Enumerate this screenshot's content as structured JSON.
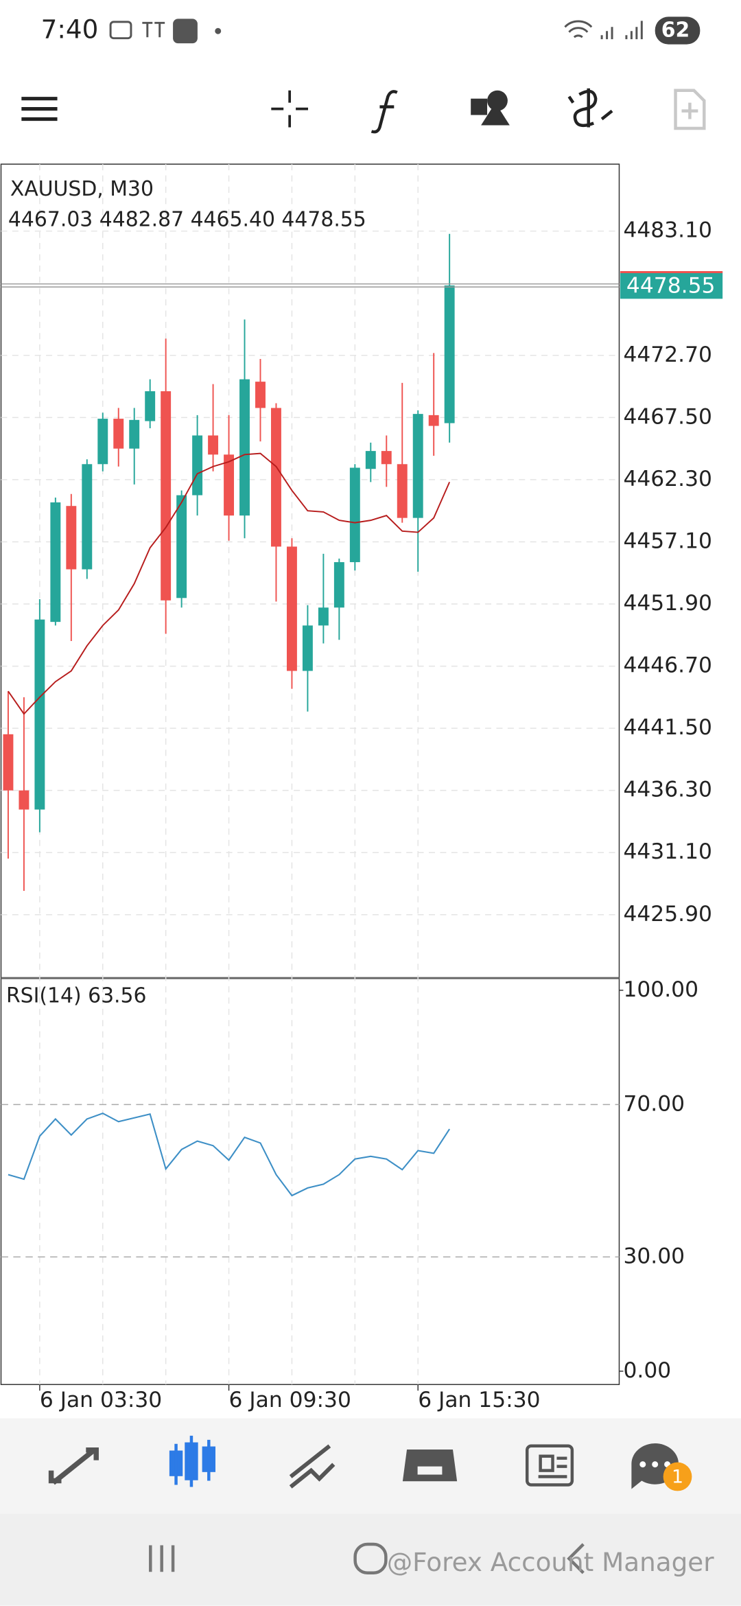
{
  "status_bar": {
    "time": "7:40",
    "battery": "62"
  },
  "chart_data": [
    {
      "type": "candlestick",
      "title": "XAUUSD, M30",
      "subtitle": "4467.03 4482.87 4465.40 4478.55",
      "categories": [
        null,
        null,
        "6 Jan 03:30",
        null,
        null,
        null,
        null,
        null,
        null,
        null,
        null,
        null,
        null,
        null,
        "6 Jan 09:30",
        null,
        null,
        null,
        null,
        null,
        null,
        null,
        null,
        null,
        null,
        null,
        "6 Jan 15:30",
        null,
        null
      ],
      "open": [
        4441.0,
        4436.3,
        4434.7,
        4450.4,
        4460.1,
        4454.8,
        4463.6,
        4467.4,
        4464.9,
        4467.2,
        4469.7,
        4452.4,
        4461.0,
        4466.0,
        4464.4,
        4459.3,
        4470.5,
        4468.3,
        4456.7,
        4446.3,
        4450.1,
        4451.6,
        4455.4,
        4463.2,
        4464.7,
        4463.6,
        4459.1,
        4467.7,
        4467.03
      ],
      "high": [
        4444.6,
        4444.1,
        4452.3,
        4460.8,
        4461.1,
        4464.0,
        4467.9,
        4468.3,
        4468.3,
        4470.7,
        4474.1,
        4461.4,
        4467.7,
        4470.3,
        4467.7,
        4475.7,
        4472.4,
        4468.7,
        4457.4,
        4451.8,
        4456.1,
        4455.7,
        4463.6,
        4465.4,
        4466.0,
        4470.4,
        4468.1,
        4472.9,
        4482.87
      ],
      "low": [
        4430.6,
        4427.9,
        4432.8,
        4450.1,
        4448.8,
        4454.0,
        4463.0,
        4463.4,
        4461.9,
        4466.6,
        4449.4,
        4451.6,
        4459.3,
        4463.0,
        4457.2,
        4457.4,
        4465.5,
        4452.1,
        4444.8,
        4442.9,
        4448.6,
        4448.9,
        4454.7,
        4462.1,
        4461.7,
        4458.7,
        4454.6,
        4464.3,
        4465.4
      ],
      "close": [
        4436.3,
        4434.7,
        4450.6,
        4460.4,
        4454.8,
        4463.6,
        4467.4,
        4464.9,
        4467.3,
        4469.7,
        4452.2,
        4461.0,
        4466.0,
        4464.4,
        4459.3,
        4470.7,
        4468.3,
        4456.7,
        4446.3,
        4450.1,
        4451.6,
        4455.4,
        4463.3,
        4464.7,
        4463.6,
        4459.1,
        4467.8,
        4466.8,
        4478.55
      ],
      "up_color": "#26a69a",
      "down_color": "#ef5350",
      "ma": {
        "color": "#b71c1c",
        "values": [
          4444.6,
          4442.7,
          4444.1,
          4445.4,
          4446.3,
          4448.4,
          4450.1,
          4451.4,
          4453.6,
          4456.6,
          4458.3,
          4460.4,
          4462.8,
          4463.4,
          4463.8,
          4464.4,
          4464.5,
          4463.4,
          4461.4,
          4459.7,
          4459.6,
          4458.9,
          4458.7,
          4458.9,
          4459.3,
          4458.0,
          4457.9,
          4459.1,
          4462.1
        ]
      },
      "ylim": [
        4420.6,
        4488.7
      ],
      "yticks": [
        {
          "value": 4483.1,
          "label": "4483.10"
        },
        {
          "value": 4472.7,
          "label": "4472.70"
        },
        {
          "value": 4467.5,
          "label": "4467.50"
        },
        {
          "value": 4462.3,
          "label": "4462.30"
        },
        {
          "value": 4457.1,
          "label": "4457.10"
        },
        {
          "value": 4451.9,
          "label": "4451.90"
        },
        {
          "value": 4446.7,
          "label": "4446.70"
        },
        {
          "value": 4441.5,
          "label": "4441.50"
        },
        {
          "value": 4436.3,
          "label": "4436.30"
        },
        {
          "value": 4431.1,
          "label": "4431.10"
        },
        {
          "value": 4425.9,
          "label": "4425.90"
        }
      ],
      "last_price": {
        "value": 4478.55,
        "label": "4478.55"
      },
      "grid": true
    },
    {
      "type": "line",
      "title": "RSI(14) 63.56",
      "series": [
        {
          "color": "#3d8fc6",
          "values": [
            51.6,
            50.4,
            61.7,
            66.2,
            62.0,
            66.2,
            67.7,
            65.5,
            66.5,
            67.5,
            53.1,
            58.2,
            60.4,
            59.2,
            55.4,
            61.4,
            59.9,
            51.6,
            46.1,
            48.1,
            49.1,
            51.6,
            55.7,
            56.4,
            55.7,
            52.9,
            57.9,
            57.2,
            63.56
          ]
        }
      ],
      "ylim": [
        -3.5,
        103.2
      ],
      "yticks": [
        {
          "value": 100,
          "label": "100.00"
        },
        {
          "value": 70,
          "label": "70.00"
        },
        {
          "value": 30,
          "label": "30.00"
        },
        {
          "value": 0,
          "label": "0.00"
        }
      ]
    }
  ],
  "bottom_nav": {
    "badge": "1"
  },
  "watermark": "@Forex Account Manager"
}
